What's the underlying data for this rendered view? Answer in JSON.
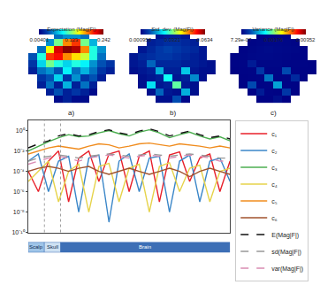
{
  "chart_data": [
    {
      "type": "heatmap",
      "title": "Expectation (Mag|F|)",
      "annotations": [
        "a)"
      ],
      "tick_labels": false,
      "colorbar": {
        "range": [
          0.00401,
          0.242
        ],
        "ticks": [
          0.00401,
          0.123,
          0.242
        ]
      },
      "cells": [
        [
          null,
          null,
          null,
          0.05,
          0.06,
          0.06,
          0.05,
          null,
          null,
          null
        ],
        [
          null,
          null,
          0.06,
          0.12,
          0.18,
          0.2,
          0.12,
          0.07,
          null,
          null
        ],
        [
          null,
          0.05,
          0.15,
          0.22,
          0.24,
          0.23,
          0.18,
          0.1,
          0.06,
          null
        ],
        [
          0.04,
          0.1,
          0.2,
          0.21,
          0.18,
          0.16,
          0.14,
          0.1,
          0.05,
          null
        ],
        [
          0.03,
          0.08,
          0.12,
          0.1,
          0.08,
          0.1,
          0.09,
          0.06,
          0.04,
          0.03
        ],
        [
          0.02,
          0.05,
          0.06,
          0.04,
          0.09,
          0.05,
          0.07,
          0.05,
          0.03,
          0.02
        ],
        [
          null,
          0.03,
          0.04,
          0.08,
          0.03,
          0.06,
          0.03,
          0.04,
          0.02,
          null
        ],
        [
          null,
          0.02,
          0.05,
          0.02,
          0.07,
          0.02,
          0.05,
          0.02,
          null,
          null
        ],
        [
          null,
          null,
          0.02,
          0.04,
          0.02,
          0.03,
          0.02,
          0.01,
          null,
          null
        ],
        [
          null,
          null,
          null,
          0.01,
          0.02,
          0.01,
          0.01,
          null,
          null,
          null
        ]
      ]
    },
    {
      "type": "heatmap",
      "title": "Std. dev. (Mag|F|)",
      "annotations": [
        "b)"
      ],
      "tick_labels": false,
      "colorbar": {
        "range": [
          0.000958,
          0.0634
        ],
        "ticks": [
          0.000958,
          0.0321,
          0.0634
        ]
      },
      "cells": [
        [
          null,
          null,
          null,
          0.004,
          0.005,
          0.005,
          0.004,
          null,
          null,
          null
        ],
        [
          null,
          null,
          0.005,
          0.006,
          0.007,
          0.007,
          0.006,
          0.005,
          null,
          null
        ],
        [
          null,
          0.004,
          0.006,
          0.008,
          0.009,
          0.008,
          0.007,
          0.006,
          0.004,
          null
        ],
        [
          0.004,
          0.006,
          0.007,
          0.008,
          0.008,
          0.007,
          0.006,
          0.005,
          0.004,
          null
        ],
        [
          0.004,
          0.005,
          0.012,
          0.006,
          0.006,
          0.006,
          0.005,
          0.005,
          0.004,
          0.003
        ],
        [
          0.003,
          0.004,
          0.005,
          0.018,
          0.005,
          0.005,
          0.02,
          0.004,
          0.003,
          0.003
        ],
        [
          null,
          0.003,
          0.004,
          0.005,
          0.025,
          0.004,
          0.005,
          0.015,
          0.003,
          null
        ],
        [
          null,
          0.003,
          0.022,
          0.004,
          0.005,
          0.03,
          0.004,
          0.003,
          null,
          null
        ],
        [
          null,
          null,
          0.003,
          0.012,
          0.004,
          0.003,
          0.018,
          0.003,
          null,
          null
        ],
        [
          null,
          null,
          null,
          0.003,
          0.003,
          0.01,
          0.002,
          null,
          null,
          null
        ]
      ]
    },
    {
      "type": "heatmap",
      "title": "Variance (Mag|F|)",
      "annotations": [
        "c)"
      ],
      "tick_labels": false,
      "colorbar": {
        "range": [
          7.29e-07,
          0.00352
        ],
        "ticks": [
          {
            "value": 7.29e-07,
            "label": "7.29e-07"
          },
          0.00176,
          0.00352
        ]
      },
      "cells": [
        [
          null,
          null,
          null,
          3e-05,
          4e-05,
          4e-05,
          3e-05,
          null,
          null,
          null
        ],
        [
          null,
          null,
          4e-05,
          5e-05,
          6e-05,
          6e-05,
          5e-05,
          4e-05,
          null,
          null
        ],
        [
          null,
          3e-05,
          5e-05,
          7e-05,
          8e-05,
          7e-05,
          6e-05,
          5e-05,
          3e-05,
          null
        ],
        [
          3e-05,
          4e-05,
          6e-05,
          7e-05,
          7e-05,
          6e-05,
          5e-05,
          4e-05,
          3e-05,
          null
        ],
        [
          3e-05,
          4e-05,
          0.0002,
          5e-05,
          5e-05,
          5e-05,
          4e-05,
          4e-05,
          3e-05,
          2e-05
        ],
        [
          2e-05,
          3e-05,
          4e-05,
          0.0004,
          4e-05,
          4e-05,
          0.0005,
          3e-05,
          2e-05,
          2e-05
        ],
        [
          null,
          2e-05,
          3e-05,
          4e-05,
          0.0007,
          3e-05,
          4e-05,
          0.0003,
          2e-05,
          null
        ],
        [
          null,
          2e-05,
          0.0005,
          3e-05,
          4e-05,
          0.0009,
          3e-05,
          2e-05,
          null,
          null
        ],
        [
          null,
          null,
          2e-05,
          0.0002,
          3e-05,
          2e-05,
          0.0004,
          2e-05,
          null,
          null
        ],
        [
          null,
          null,
          null,
          2e-05,
          2e-05,
          0.0001,
          1e-05,
          null,
          null,
          null
        ]
      ]
    },
    {
      "type": "line",
      "log": "y",
      "grid": false,
      "tick_labels": "y",
      "legend": "right",
      "xlim": [
        0,
        100
      ],
      "ylim": [
        1e-10,
        10
      ],
      "yticks": [
        {
          "value": 1e-10,
          "label": "10⁻¹⁰"
        },
        {
          "value": 1e-08,
          "label": "10⁻⁸"
        },
        {
          "value": 1e-06,
          "label": "10⁻⁶"
        },
        {
          "value": 0.0001,
          "label": "10⁻⁴"
        },
        {
          "value": 0.01,
          "label": "10⁻²"
        },
        {
          "value": 1,
          "label": "10⁰"
        }
      ],
      "x": [
        0,
        5,
        10,
        15,
        20,
        25,
        30,
        35,
        40,
        45,
        50,
        55,
        60,
        65,
        70,
        75,
        80,
        85,
        90,
        95,
        100
      ],
      "layers": [
        {
          "name": "Scalp",
          "from": 0,
          "to": 8,
          "color": "#9fc5e8"
        },
        {
          "name": "Skull",
          "from": 8,
          "to": 16,
          "color": "#cfe2f3"
        },
        {
          "name": "Brain",
          "from": 16,
          "to": 100,
          "color": "#3d6fb6"
        }
      ],
      "series": [
        {
          "name": "c₁",
          "color": "#e8202a",
          "line_style": "solid",
          "values": [
            0.0001,
            1e-06,
            0.001,
            0.01,
            1e-07,
            0.002,
            0.01,
            1e-05,
            0.005,
            0.01,
            1e-06,
            0.003,
            0.01,
            1e-07,
            0.004,
            0.008,
            1e-05,
            0.002,
            0.005,
            1e-06,
            0.001
          ]
        },
        {
          "name": "c₂",
          "color": "#3a86c8",
          "line_style": "solid",
          "values": [
            0.001,
            0.005,
            1e-06,
            0.001,
            0.003,
            1e-08,
            0.002,
            0.004,
            1e-09,
            0.001,
            0.005,
            1e-06,
            0.002,
            0.003,
            1e-08,
            0.001,
            0.004,
            1e-07,
            0.001,
            0.002,
            1e-05
          ]
        },
        {
          "name": "c₃",
          "color": "#4caf50",
          "line_style": "solid",
          "values": [
            0.01,
            0.03,
            0.08,
            0.2,
            0.4,
            0.25,
            0.3,
            0.6,
            1,
            0.5,
            0.3,
            0.7,
            1.2,
            0.6,
            0.2,
            0.4,
            0.7,
            0.3,
            0.15,
            0.25,
            0.1
          ]
        },
        {
          "name": "c₄",
          "color": "#e6d34a",
          "line_style": "solid",
          "values": [
            1e-05,
            0.0001,
            0.001,
            1e-07,
            0.0001,
            0.0005,
            1e-08,
            0.0003,
            0.0006,
            1e-07,
            0.0002,
            0.0005,
            1e-08,
            0.0003,
            0.0007,
            1e-06,
            0.0002,
            0.0004,
            1e-07,
            0.0001,
            0.0002
          ]
        },
        {
          "name": "c₅",
          "color": "#f08c1e",
          "line_style": "solid",
          "values": [
            0.005,
            0.01,
            0.02,
            0.03,
            0.02,
            0.015,
            0.03,
            0.05,
            0.04,
            0.02,
            0.03,
            0.05,
            0.06,
            0.04,
            0.03,
            0.05,
            0.04,
            0.03,
            0.02,
            0.03,
            0.02
          ]
        },
        {
          "name": "c₆",
          "color": "#a0522d",
          "line_style": "solid",
          "values": [
            0.0001,
            0.0002,
            0.0003,
            0.0002,
            0.0001,
            0.0002,
            0.0003,
            0.0001,
            5e-05,
            0.0001,
            0.0002,
            0.0001,
            5e-05,
            0.0001,
            0.0002,
            0.0001,
            3e-05,
            0.0001,
            0.0002,
            0.0001,
            5e-05
          ]
        },
        {
          "name": "E(Mag|F|)",
          "color": "#111111",
          "line_style": "dash",
          "values": [
            0.02,
            0.05,
            0.1,
            0.3,
            0.5,
            0.3,
            0.4,
            0.8,
            1.2,
            0.6,
            0.4,
            0.9,
            1.5,
            0.8,
            0.3,
            0.5,
            0.9,
            0.4,
            0.2,
            0.3,
            0.15
          ]
        },
        {
          "name": "sd(Mag|F|)",
          "color": "#999999",
          "line_style": "dash",
          "values": [
            0.001,
            0.002,
            0.003,
            0.004,
            0.003,
            0.002,
            0.003,
            0.004,
            0.005,
            0.004,
            0.003,
            0.004,
            0.005,
            0.004,
            0.003,
            0.004,
            0.005,
            0.004,
            0.003,
            0.002,
            0.002
          ]
        },
        {
          "name": "var(Mag|F|)",
          "color": "#d98cb3",
          "line_style": "dash",
          "values": [
            0.0005,
            0.001,
            0.002,
            0.003,
            0.002,
            0.001,
            0.002,
            0.003,
            0.004,
            0.003,
            0.002,
            0.003,
            0.004,
            0.003,
            0.002,
            0.003,
            0.004,
            0.003,
            0.002,
            0.001,
            0.001
          ]
        }
      ]
    }
  ]
}
